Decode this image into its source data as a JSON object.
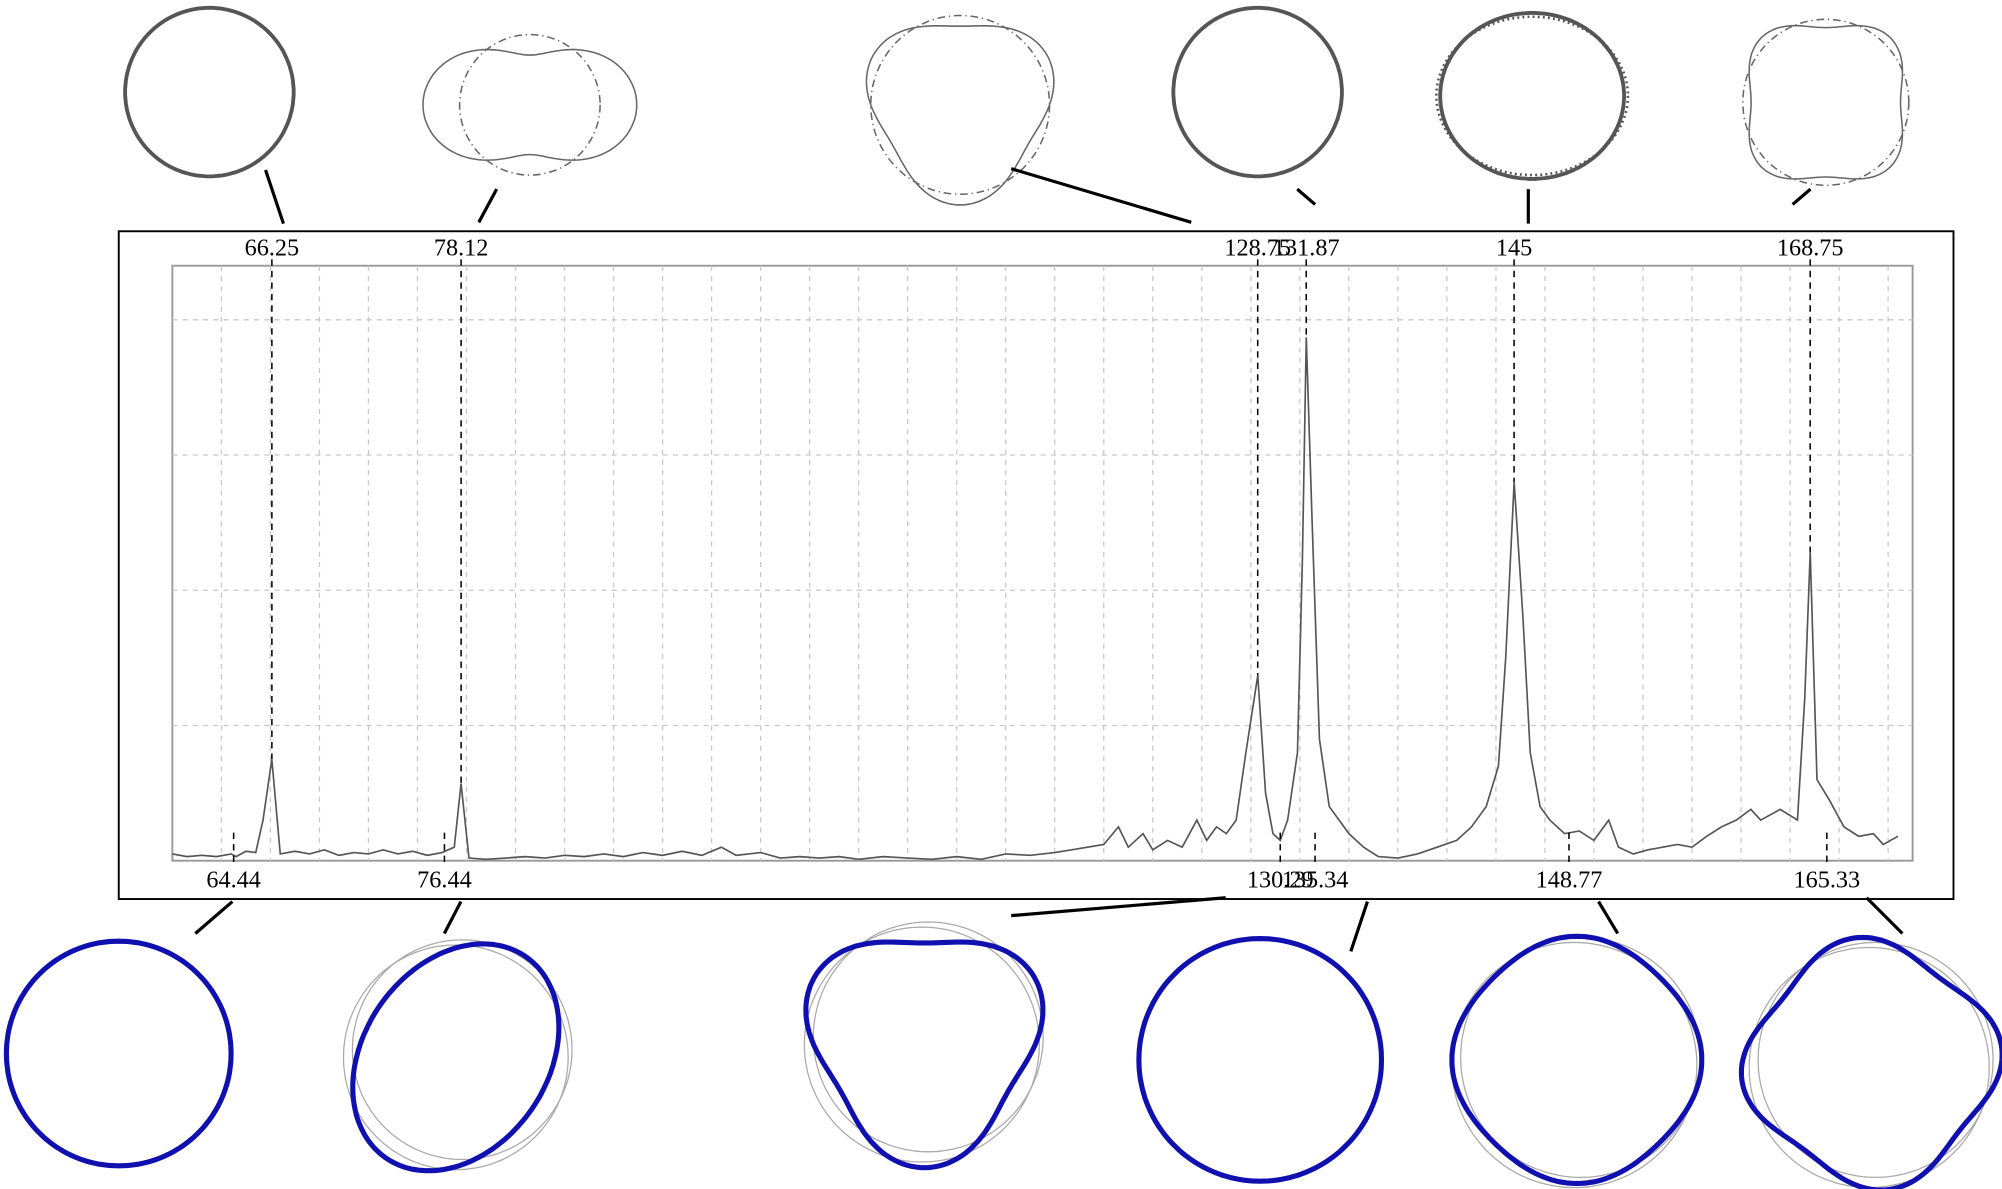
{
  "chart_data": {
    "type": "line",
    "color": "#555555",
    "grid": true,
    "xlim": [
      0,
      35.5
    ],
    "ylim": [
      0,
      4.4
    ],
    "xticks": [
      1,
      2,
      3,
      4,
      5,
      6,
      7,
      8,
      9,
      10,
      11,
      12,
      13,
      14,
      15,
      16,
      17,
      18,
      19,
      20,
      21,
      22,
      23,
      24,
      25,
      26,
      27,
      28,
      29,
      30,
      31,
      32,
      33,
      34,
      35
    ],
    "yticks": [
      1,
      2,
      3,
      4
    ],
    "x": [
      0,
      0.3,
      0.6,
      0.9,
      1.2,
      1.3,
      1.5,
      1.7,
      1.85,
      2.03,
      2.2,
      2.5,
      2.8,
      3.1,
      3.4,
      3.7,
      4.0,
      4.3,
      4.6,
      4.9,
      5.2,
      5.5,
      5.75,
      5.89,
      6.05,
      6.4,
      6.8,
      7.2,
      7.6,
      8.0,
      8.4,
      8.8,
      9.2,
      9.6,
      10.0,
      10.4,
      10.8,
      11.2,
      11.5,
      12.0,
      12.4,
      12.8,
      13.2,
      13.6,
      14.0,
      14.5,
      15.0,
      15.5,
      16.0,
      16.5,
      17.0,
      17.5,
      18.0,
      18.5,
      19.0,
      19.3,
      19.5,
      19.8,
      20.0,
      20.3,
      20.6,
      20.9,
      21.1,
      21.3,
      21.5,
      21.7,
      21.9,
      22.14,
      22.3,
      22.45,
      22.6,
      22.75,
      22.95,
      23.05,
      23.13,
      23.25,
      23.4,
      23.6,
      23.8,
      24.0,
      24.3,
      24.6,
      25.0,
      25.4,
      25.8,
      26.2,
      26.5,
      26.8,
      27.05,
      27.2,
      27.37,
      27.55,
      27.7,
      27.9,
      28.1,
      28.4,
      28.7,
      29.0,
      29.3,
      29.5,
      29.8,
      30.1,
      30.4,
      30.7,
      31.0,
      31.3,
      31.6,
      31.9,
      32.2,
      32.4,
      32.8,
      33.15,
      33.3,
      33.41,
      33.55,
      33.8,
      34.1,
      34.4,
      34.7,
      34.9,
      35.2
    ],
    "values": [
      0.05,
      0.03,
      0.04,
      0.03,
      0.05,
      0.03,
      0.07,
      0.06,
      0.3,
      0.75,
      0.05,
      0.07,
      0.05,
      0.08,
      0.04,
      0.06,
      0.05,
      0.08,
      0.05,
      0.07,
      0.04,
      0.06,
      0.1,
      0.57,
      0.02,
      0.01,
      0.02,
      0.03,
      0.02,
      0.04,
      0.03,
      0.05,
      0.03,
      0.06,
      0.04,
      0.07,
      0.04,
      0.1,
      0.04,
      0.06,
      0.02,
      0.03,
      0.02,
      0.03,
      0.01,
      0.03,
      0.02,
      0.01,
      0.03,
      0.01,
      0.05,
      0.04,
      0.06,
      0.09,
      0.12,
      0.25,
      0.1,
      0.2,
      0.08,
      0.15,
      0.1,
      0.3,
      0.15,
      0.25,
      0.2,
      0.3,
      0.8,
      1.37,
      0.5,
      0.2,
      0.15,
      0.3,
      0.8,
      2.2,
      3.87,
      2.5,
      0.9,
      0.4,
      0.3,
      0.2,
      0.1,
      0.03,
      0.02,
      0.05,
      0.1,
      0.15,
      0.25,
      0.4,
      0.7,
      1.5,
      2.8,
      1.8,
      0.8,
      0.4,
      0.3,
      0.2,
      0.22,
      0.15,
      0.3,
      0.1,
      0.05,
      0.08,
      0.1,
      0.12,
      0.1,
      0.18,
      0.25,
      0.3,
      0.38,
      0.3,
      0.38,
      0.3,
      1.2,
      2.28,
      0.6,
      0.45,
      0.25,
      0.18,
      0.2,
      0.12,
      0.18
    ],
    "annotations_top": [
      {
        "label": "66.25",
        "x": 2.03
      },
      {
        "label": "78.12",
        "x": 5.89
      },
      {
        "label": "128.75",
        "x": 22.14
      },
      {
        "label": "131.87",
        "x": 23.13
      },
      {
        "label": "145",
        "x": 27.37
      },
      {
        "label": "168.75",
        "x": 33.41
      }
    ],
    "annotations_bottom": [
      {
        "label": "64.44",
        "x": 1.25
      },
      {
        "label": "76.44",
        "x": 5.55
      },
      {
        "label": "130.29",
        "x": 22.6
      },
      {
        "label": "135.34",
        "x": 23.31
      },
      {
        "label": "148.77",
        "x": 28.49
      },
      {
        "label": "165.33",
        "x": 33.75
      }
    ]
  }
}
